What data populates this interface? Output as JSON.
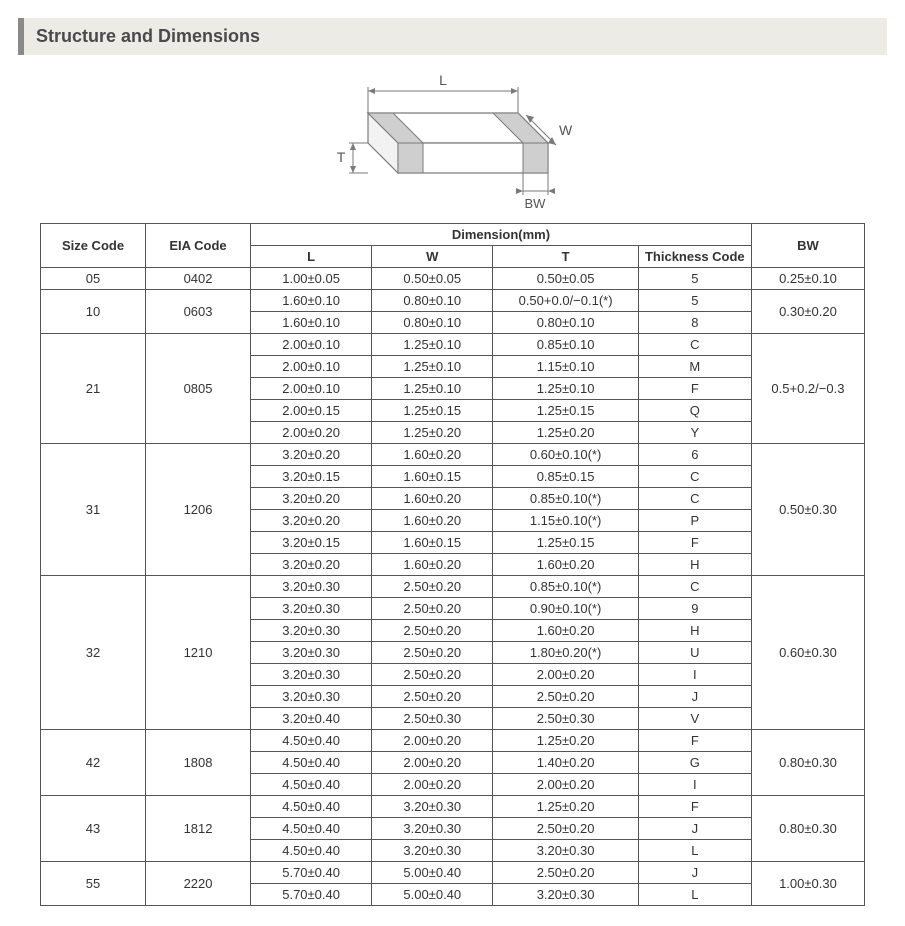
{
  "title": "Structure and Dimensions",
  "diagram": {
    "labels": {
      "L": "L",
      "W": "W",
      "T": "T",
      "BW": "BW"
    },
    "stroke": "#7a7a7a",
    "fill_face": "#ffffff",
    "fill_band": "#cfcfcf",
    "label_color": "#555555",
    "label_fontsize": 14
  },
  "table": {
    "headers": {
      "size": "Size Code",
      "eia": "EIA Code",
      "dim": "Dimension(mm)",
      "L": "L",
      "W": "W",
      "T": "T",
      "TC": "Thickness Code",
      "BW": "BW"
    },
    "border_color": "#555555",
    "font_size": 13,
    "groups": [
      {
        "size": "05",
        "eia": "0402",
        "bw": "0.25±0.10",
        "rows": [
          {
            "L": "1.00±0.05",
            "W": "0.50±0.05",
            "T": "0.50±0.05",
            "TC": "5"
          }
        ]
      },
      {
        "size": "10",
        "eia": "0603",
        "bw": "0.30±0.20",
        "rows": [
          {
            "L": "1.60±0.10",
            "W": "0.80±0.10",
            "T": "0.50+0.0/−0.1(*)",
            "TC": "5"
          },
          {
            "L": "1.60±0.10",
            "W": "0.80±0.10",
            "T": "0.80±0.10",
            "TC": "8"
          }
        ]
      },
      {
        "size": "21",
        "eia": "0805",
        "bw": "0.5+0.2/−0.3",
        "rows": [
          {
            "L": "2.00±0.10",
            "W": "1.25±0.10",
            "T": "0.85±0.10",
            "TC": "C"
          },
          {
            "L": "2.00±0.10",
            "W": "1.25±0.10",
            "T": "1.15±0.10",
            "TC": "M"
          },
          {
            "L": "2.00±0.10",
            "W": "1.25±0.10",
            "T": "1.25±0.10",
            "TC": "F"
          },
          {
            "L": "2.00±0.15",
            "W": "1.25±0.15",
            "T": "1.25±0.15",
            "TC": "Q"
          },
          {
            "L": "2.00±0.20",
            "W": "1.25±0.20",
            "T": "1.25±0.20",
            "TC": "Y"
          }
        ]
      },
      {
        "size": "31",
        "eia": "1206",
        "bw": "0.50±0.30",
        "rows": [
          {
            "L": "3.20±0.20",
            "W": "1.60±0.20",
            "T": "0.60±0.10(*)",
            "TC": "6"
          },
          {
            "L": "3.20±0.15",
            "W": "1.60±0.15",
            "T": "0.85±0.15",
            "TC": "C"
          },
          {
            "L": "3.20±0.20",
            "W": "1.60±0.20",
            "T": "0.85±0.10(*)",
            "TC": "C"
          },
          {
            "L": "3.20±0.20",
            "W": "1.60±0.20",
            "T": "1.15±0.10(*)",
            "TC": "P"
          },
          {
            "L": "3.20±0.15",
            "W": "1.60±0.15",
            "T": "1.25±0.15",
            "TC": "F"
          },
          {
            "L": "3.20±0.20",
            "W": "1.60±0.20",
            "T": "1.60±0.20",
            "TC": "H"
          }
        ]
      },
      {
        "size": "32",
        "eia": "1210",
        "bw": "0.60±0.30",
        "rows": [
          {
            "L": "3.20±0.30",
            "W": "2.50±0.20",
            "T": "0.85±0.10(*)",
            "TC": "C"
          },
          {
            "L": "3.20±0.30",
            "W": "2.50±0.20",
            "T": "0.90±0.10(*)",
            "TC": "9"
          },
          {
            "L": "3.20±0.30",
            "W": "2.50±0.20",
            "T": "1.60±0.20",
            "TC": "H"
          },
          {
            "L": "3.20±0.30",
            "W": "2.50±0.20",
            "T": "1.80±0.20(*)",
            "TC": "U"
          },
          {
            "L": "3.20±0.30",
            "W": "2.50±0.20",
            "T": "2.00±0.20",
            "TC": "I"
          },
          {
            "L": "3.20±0.30",
            "W": "2.50±0.20",
            "T": "2.50±0.20",
            "TC": "J"
          },
          {
            "L": "3.20±0.40",
            "W": "2.50±0.30",
            "T": "2.50±0.30",
            "TC": "V"
          }
        ]
      },
      {
        "size": "42",
        "eia": "1808",
        "bw": "0.80±0.30",
        "rows": [
          {
            "L": "4.50±0.40",
            "W": "2.00±0.20",
            "T": "1.25±0.20",
            "TC": "F"
          },
          {
            "L": "4.50±0.40",
            "W": "2.00±0.20",
            "T": "1.40±0.20",
            "TC": "G"
          },
          {
            "L": "4.50±0.40",
            "W": "2.00±0.20",
            "T": "2.00±0.20",
            "TC": "I"
          }
        ]
      },
      {
        "size": "43",
        "eia": "1812",
        "bw": "0.80±0.30",
        "rows": [
          {
            "L": "4.50±0.40",
            "W": "3.20±0.30",
            "T": "1.25±0.20",
            "TC": "F"
          },
          {
            "L": "4.50±0.40",
            "W": "3.20±0.30",
            "T": "2.50±0.20",
            "TC": "J"
          },
          {
            "L": "4.50±0.40",
            "W": "3.20±0.30",
            "T": "3.20±0.30",
            "TC": "L"
          }
        ]
      },
      {
        "size": "55",
        "eia": "2220",
        "bw": "1.00±0.30",
        "rows": [
          {
            "L": "5.70±0.40",
            "W": "5.00±0.40",
            "T": "2.50±0.20",
            "TC": "J"
          },
          {
            "L": "5.70±0.40",
            "W": "5.00±0.40",
            "T": "3.20±0.30",
            "TC": "L"
          }
        ]
      }
    ]
  }
}
